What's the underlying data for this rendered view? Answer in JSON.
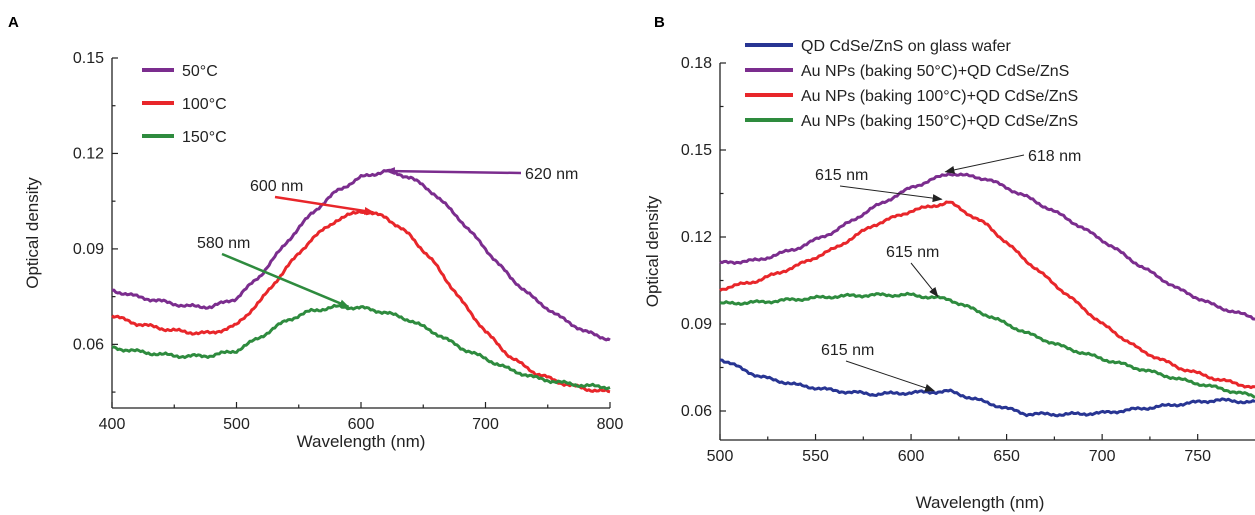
{
  "chart_data": [
    {
      "panel": "A",
      "type": "line",
      "xlabel": "Wavelength (nm)",
      "ylabel": "Optical density",
      "xlim": [
        400,
        800
      ],
      "ylim": [
        0.04,
        0.15
      ],
      "xticks": [
        400,
        500,
        600,
        700,
        800
      ],
      "yticks": [
        0.06,
        0.09,
        0.12,
        0.15
      ],
      "ytick_labels": [
        "0.06",
        "0.09",
        "0.12",
        "0.15"
      ],
      "legend_position": "top-left",
      "grid": false,
      "series": [
        {
          "name": "50°C",
          "color": "#7b2d8e",
          "x": [
            400,
            420,
            440,
            460,
            480,
            500,
            520,
            540,
            560,
            580,
            600,
            620,
            640,
            660,
            680,
            700,
            720,
            740,
            760,
            780,
            800
          ],
          "y": [
            0.077,
            0.075,
            0.0735,
            0.072,
            0.0718,
            0.0745,
            0.082,
            0.092,
            0.101,
            0.108,
            0.1125,
            0.1145,
            0.1125,
            0.107,
            0.099,
            0.09,
            0.081,
            0.074,
            0.0685,
            0.064,
            0.0615
          ]
        },
        {
          "name": "100°C",
          "color": "#e8262a",
          "x": [
            400,
            420,
            440,
            460,
            480,
            500,
            520,
            540,
            560,
            580,
            600,
            620,
            640,
            660,
            680,
            700,
            720,
            740,
            760,
            780,
            800
          ],
          "y": [
            0.069,
            0.0665,
            0.065,
            0.0638,
            0.0635,
            0.066,
            0.074,
            0.084,
            0.093,
            0.099,
            0.102,
            0.1,
            0.094,
            0.085,
            0.074,
            0.064,
            0.056,
            0.051,
            0.048,
            0.046,
            0.045
          ]
        },
        {
          "name": "150°C",
          "color": "#2e8b3e",
          "x": [
            400,
            420,
            440,
            460,
            480,
            500,
            520,
            540,
            560,
            580,
            600,
            620,
            640,
            660,
            680,
            700,
            720,
            740,
            760,
            780,
            800
          ],
          "y": [
            0.059,
            0.0578,
            0.0568,
            0.0562,
            0.0565,
            0.058,
            0.0625,
            0.0675,
            0.0705,
            0.0718,
            0.0715,
            0.07,
            0.0675,
            0.0635,
            0.059,
            0.0555,
            0.052,
            0.0495,
            0.048,
            0.047,
            0.0465
          ]
        }
      ],
      "annotations": [
        {
          "text": "620 nm",
          "arrow_to": [
            620,
            0.1145
          ],
          "color": "#7b2d8e"
        },
        {
          "text": "600 nm",
          "arrow_to": [
            610,
            0.1015
          ],
          "color": "#e8262a"
        },
        {
          "text": "580 nm",
          "arrow_to": [
            590,
            0.0718
          ],
          "color": "#2e8b3e"
        }
      ]
    },
    {
      "panel": "B",
      "type": "line",
      "xlabel": "Wavelength (nm)",
      "ylabel": "Optical density",
      "xlim": [
        500,
        780
      ],
      "ylim": [
        0.05,
        0.18
      ],
      "xticks": [
        500,
        550,
        600,
        650,
        700,
        750
      ],
      "yticks": [
        0.06,
        0.09,
        0.12,
        0.15,
        0.18
      ],
      "ytick_labels": [
        "0.06",
        "0.09",
        "0.12",
        "0.15",
        "0.18"
      ],
      "legend_position": "top",
      "grid": false,
      "series": [
        {
          "name": "QD CdSe/ZnS on glass wafer",
          "color": "#283593",
          "x": [
            500,
            520,
            540,
            560,
            580,
            600,
            620,
            640,
            660,
            680,
            700,
            720,
            740,
            760,
            780
          ],
          "y": [
            0.078,
            0.072,
            0.069,
            0.067,
            0.0658,
            0.0663,
            0.0668,
            0.0628,
            0.059,
            0.0588,
            0.0593,
            0.0608,
            0.0623,
            0.0638,
            0.063
          ]
        },
        {
          "name": "Au NPs (baking 50°C)+QD CdSe/ZnS",
          "color": "#7b2d8e",
          "x": [
            500,
            520,
            540,
            560,
            580,
            600,
            620,
            640,
            660,
            680,
            700,
            720,
            740,
            760,
            780
          ],
          "y": [
            0.111,
            0.112,
            0.116,
            0.122,
            0.13,
            0.137,
            0.142,
            0.14,
            0.134,
            0.127,
            0.119,
            0.11,
            0.102,
            0.096,
            0.092
          ]
        },
        {
          "name": "Au NPs (baking 100°C)+QD CdSe/ZnS",
          "color": "#e8262a",
          "x": [
            500,
            520,
            540,
            560,
            580,
            600,
            620,
            640,
            660,
            680,
            700,
            720,
            740,
            760,
            780
          ],
          "y": [
            0.102,
            0.105,
            0.11,
            0.116,
            0.124,
            0.129,
            0.132,
            0.124,
            0.112,
            0.101,
            0.09,
            0.081,
            0.075,
            0.071,
            0.068
          ]
        },
        {
          "name": "Au NPs (baking 150°C)+QD CdSe/ZnS",
          "color": "#2e8b3e",
          "x": [
            500,
            520,
            540,
            560,
            580,
            600,
            620,
            640,
            660,
            680,
            700,
            720,
            740,
            760,
            780
          ],
          "y": [
            0.097,
            0.0975,
            0.0985,
            0.0995,
            0.1,
            0.1,
            0.0985,
            0.093,
            0.087,
            0.082,
            0.078,
            0.0745,
            0.071,
            0.068,
            0.065
          ]
        }
      ],
      "annotations": [
        {
          "text": "618 nm",
          "arrow_to": [
            618,
            0.1425
          ],
          "color": "#222222"
        },
        {
          "text": "615 nm",
          "arrow_to": [
            616,
            0.133
          ],
          "color": "#222222"
        },
        {
          "text": "615 nm",
          "arrow_to": [
            614,
            0.0995
          ],
          "color": "#222222"
        },
        {
          "text": "615 nm",
          "arrow_to": [
            612,
            0.067
          ],
          "color": "#222222"
        }
      ]
    }
  ]
}
